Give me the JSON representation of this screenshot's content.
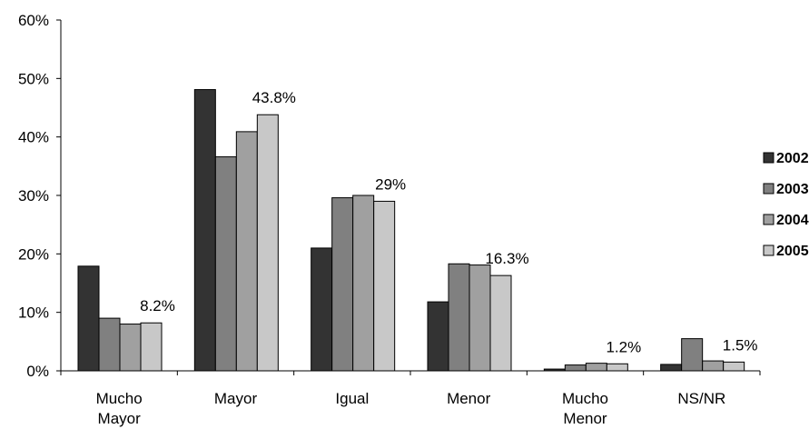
{
  "chart_data": {
    "type": "bar",
    "title": "",
    "xlabel": "",
    "ylabel": "",
    "ylim": [
      0,
      60
    ],
    "yticks": [
      "0%",
      "10%",
      "20%",
      "30%",
      "40%",
      "50%",
      "60%"
    ],
    "y_tick_values": [
      0,
      10,
      20,
      30,
      40,
      50,
      60
    ],
    "categories": [
      [
        "Mucho",
        "Mayor"
      ],
      [
        "Mayor"
      ],
      [
        "Igual"
      ],
      [
        "Menor"
      ],
      [
        "Mucho",
        "Menor"
      ],
      [
        "NS/NR"
      ]
    ],
    "series": [
      {
        "name": "2002",
        "color": "#333333",
        "values": [
          17.9,
          48.1,
          21.0,
          11.8,
          0.3,
          1.1
        ]
      },
      {
        "name": "2003",
        "color": "#808080",
        "values": [
          9.0,
          36.6,
          29.6,
          18.3,
          1.0,
          5.5
        ]
      },
      {
        "name": "2004",
        "color": "#a0a0a0",
        "values": [
          8.0,
          40.9,
          30.0,
          18.1,
          1.3,
          1.7
        ]
      },
      {
        "name": "2005",
        "color": "#c8c8c8",
        "values": [
          8.2,
          43.8,
          29.0,
          16.3,
          1.2,
          1.5
        ]
      }
    ],
    "data_labels": [
      "8.2%",
      "43.8%",
      "29%",
      "16.3%",
      "1.2%",
      "1.5%"
    ],
    "legend_position": "right",
    "grid": false
  }
}
